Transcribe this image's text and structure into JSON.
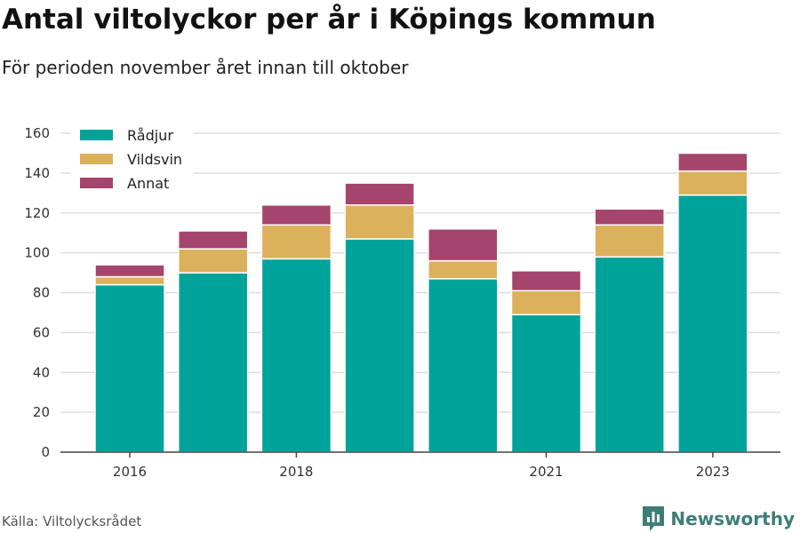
{
  "title": "Antal viltolyckor per år i Köpings kommun",
  "subtitle": "För perioden november året innan till oktober",
  "source": "Källa: Viltolycksrådet",
  "brand": {
    "name": "Newsworthy",
    "icon": "newsworthy-logo-icon",
    "color": "#3d7d78"
  },
  "chart_data": {
    "type": "bar",
    "stacked": true,
    "categories": [
      "2016",
      "2017",
      "2018",
      "2019",
      "2020",
      "2021",
      "2022",
      "2023"
    ],
    "x_tick_labels": [
      "2016",
      "",
      "2018",
      "",
      "",
      "2021",
      "",
      "2023"
    ],
    "series": [
      {
        "name": "Rådjur",
        "color": "#00a39a",
        "values": [
          84,
          90,
          97,
          107,
          87,
          69,
          98,
          129
        ]
      },
      {
        "name": "Vildsvin",
        "color": "#dcb15b",
        "values": [
          4,
          12,
          17,
          17,
          9,
          12,
          16,
          12
        ]
      },
      {
        "name": "Annat",
        "color": "#a5446c",
        "values": [
          6,
          9,
          10,
          11,
          16,
          10,
          8,
          9
        ]
      }
    ],
    "ylim": [
      0,
      160
    ],
    "yticks": [
      0,
      20,
      40,
      60,
      80,
      100,
      120,
      140,
      160
    ],
    "grid": true,
    "legend_position": "top-left"
  }
}
